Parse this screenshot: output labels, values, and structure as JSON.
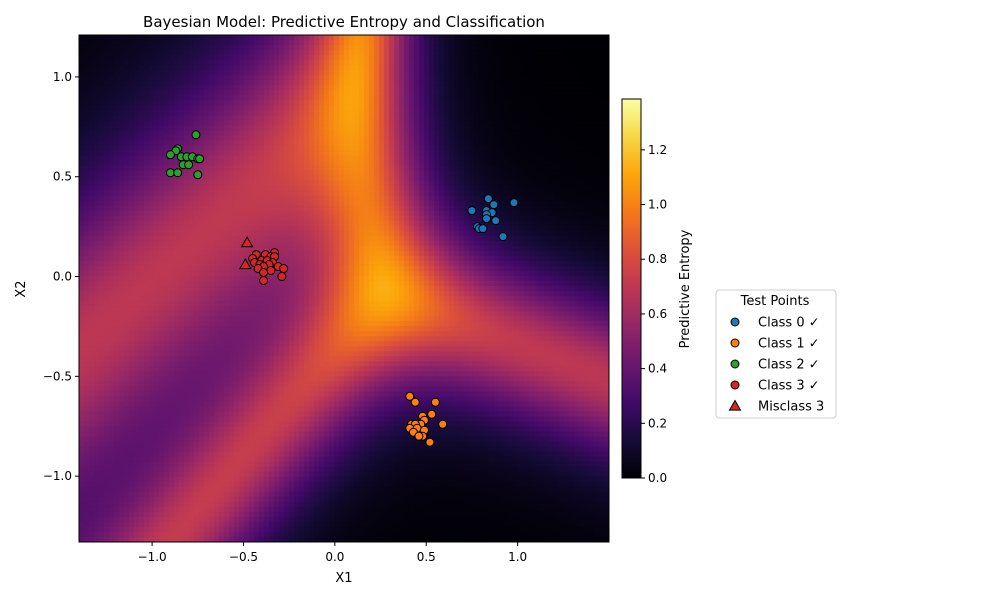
{
  "chart_data": {
    "type": "scatter",
    "title": "Bayesian Model: Predictive Entropy and Classification",
    "xlabel": "X1",
    "ylabel": "X2",
    "xlim": [
      -1.4,
      1.5
    ],
    "ylim": [
      -1.33,
      1.21
    ],
    "xticks": [
      -1.0,
      -0.5,
      0.0,
      0.5,
      1.0
    ],
    "xtick_labels": [
      "−1.0",
      "−0.5",
      "0.0",
      "0.5",
      "1.0"
    ],
    "yticks": [
      -1.0,
      -0.5,
      0.0,
      0.5,
      1.0
    ],
    "ytick_labels": [
      "−1.0",
      "−0.5",
      "0.0",
      "0.5",
      "1.0"
    ],
    "grid": false,
    "background": "predictive entropy heatmap (inferno colormap)",
    "colorbar": {
      "label": "Predictive Entropy",
      "range": [
        0.0,
        1.386
      ],
      "ticks": [
        0.0,
        0.2,
        0.4,
        0.6,
        0.8,
        1.0,
        1.2
      ],
      "tick_labels": [
        "0.0",
        "0.2",
        "0.4",
        "0.6",
        "0.8",
        "1.0",
        "1.2"
      ],
      "colormap": "inferno"
    },
    "legend": {
      "title": "Test Points",
      "placement": "center-right outside plot",
      "entries": [
        {
          "label": "Class 0 ✓",
          "marker": "circle",
          "color": "#1f77b4"
        },
        {
          "label": "Class 1 ✓",
          "marker": "circle",
          "color": "#ff7f0e"
        },
        {
          "label": "Class 2 ✓",
          "marker": "circle",
          "color": "#2ca02c"
        },
        {
          "label": "Class 3 ✓",
          "marker": "circle",
          "color": "#d62728"
        },
        {
          "label": "Misclass 3",
          "marker": "triangle",
          "color": "#d62728"
        }
      ]
    },
    "series": [
      {
        "name": "Class 0 ✓",
        "color": "#1f77b4",
        "marker": "circle",
        "points": [
          [
            0.84,
            0.39
          ],
          [
            0.98,
            0.37
          ],
          [
            0.87,
            0.36
          ],
          [
            0.75,
            0.33
          ],
          [
            0.83,
            0.33
          ],
          [
            0.86,
            0.32
          ],
          [
            0.83,
            0.31
          ],
          [
            0.83,
            0.29
          ],
          [
            0.88,
            0.28
          ],
          [
            0.78,
            0.25
          ],
          [
            0.79,
            0.24
          ],
          [
            0.81,
            0.24
          ],
          [
            0.92,
            0.2
          ]
        ]
      },
      {
        "name": "Class 1 ✓",
        "color": "#ff7f0e",
        "marker": "circle",
        "points": [
          [
            0.41,
            -0.6
          ],
          [
            0.44,
            -0.63
          ],
          [
            0.55,
            -0.63
          ],
          [
            0.53,
            -0.69
          ],
          [
            0.48,
            -0.7
          ],
          [
            0.49,
            -0.72
          ],
          [
            0.47,
            -0.74
          ],
          [
            0.42,
            -0.74
          ],
          [
            0.44,
            -0.74
          ],
          [
            0.59,
            -0.74
          ],
          [
            0.41,
            -0.76
          ],
          [
            0.45,
            -0.76
          ],
          [
            0.49,
            -0.77
          ],
          [
            0.43,
            -0.78
          ],
          [
            0.48,
            -0.8
          ],
          [
            0.46,
            -0.8
          ],
          [
            0.52,
            -0.83
          ]
        ]
      },
      {
        "name": "Class 2 ✓",
        "color": "#2ca02c",
        "marker": "circle",
        "points": [
          [
            -0.76,
            0.71
          ],
          [
            -0.86,
            0.64
          ],
          [
            -0.87,
            0.63
          ],
          [
            -0.9,
            0.61
          ],
          [
            -0.84,
            0.6
          ],
          [
            -0.81,
            0.6
          ],
          [
            -0.78,
            0.6
          ],
          [
            -0.75,
            0.59
          ],
          [
            -0.74,
            0.59
          ],
          [
            -0.83,
            0.56
          ],
          [
            -0.8,
            0.56
          ],
          [
            -0.9,
            0.52
          ],
          [
            -0.86,
            0.52
          ],
          [
            -0.75,
            0.51
          ]
        ]
      },
      {
        "name": "Class 3 ✓",
        "color": "#d62728",
        "marker": "circle",
        "points": [
          [
            -0.33,
            0.12
          ],
          [
            -0.43,
            0.11
          ],
          [
            -0.38,
            0.11
          ],
          [
            -0.35,
            0.1
          ],
          [
            -0.33,
            0.1
          ],
          [
            -0.45,
            0.09
          ],
          [
            -0.4,
            0.08
          ],
          [
            -0.37,
            0.08
          ],
          [
            -0.34,
            0.07
          ],
          [
            -0.44,
            0.07
          ],
          [
            -0.41,
            0.06
          ],
          [
            -0.36,
            0.06
          ],
          [
            -0.39,
            0.05
          ],
          [
            -0.31,
            0.05
          ],
          [
            -0.42,
            0.04
          ],
          [
            -0.28,
            0.04
          ],
          [
            -0.35,
            0.03
          ],
          [
            -0.39,
            0.02
          ],
          [
            -0.29,
            0.0
          ],
          [
            -0.39,
            -0.02
          ]
        ]
      },
      {
        "name": "Misclass 3",
        "color": "#d62728",
        "marker": "triangle",
        "points": [
          [
            -0.48,
            0.17
          ],
          [
            -0.49,
            0.06
          ]
        ]
      }
    ]
  }
}
